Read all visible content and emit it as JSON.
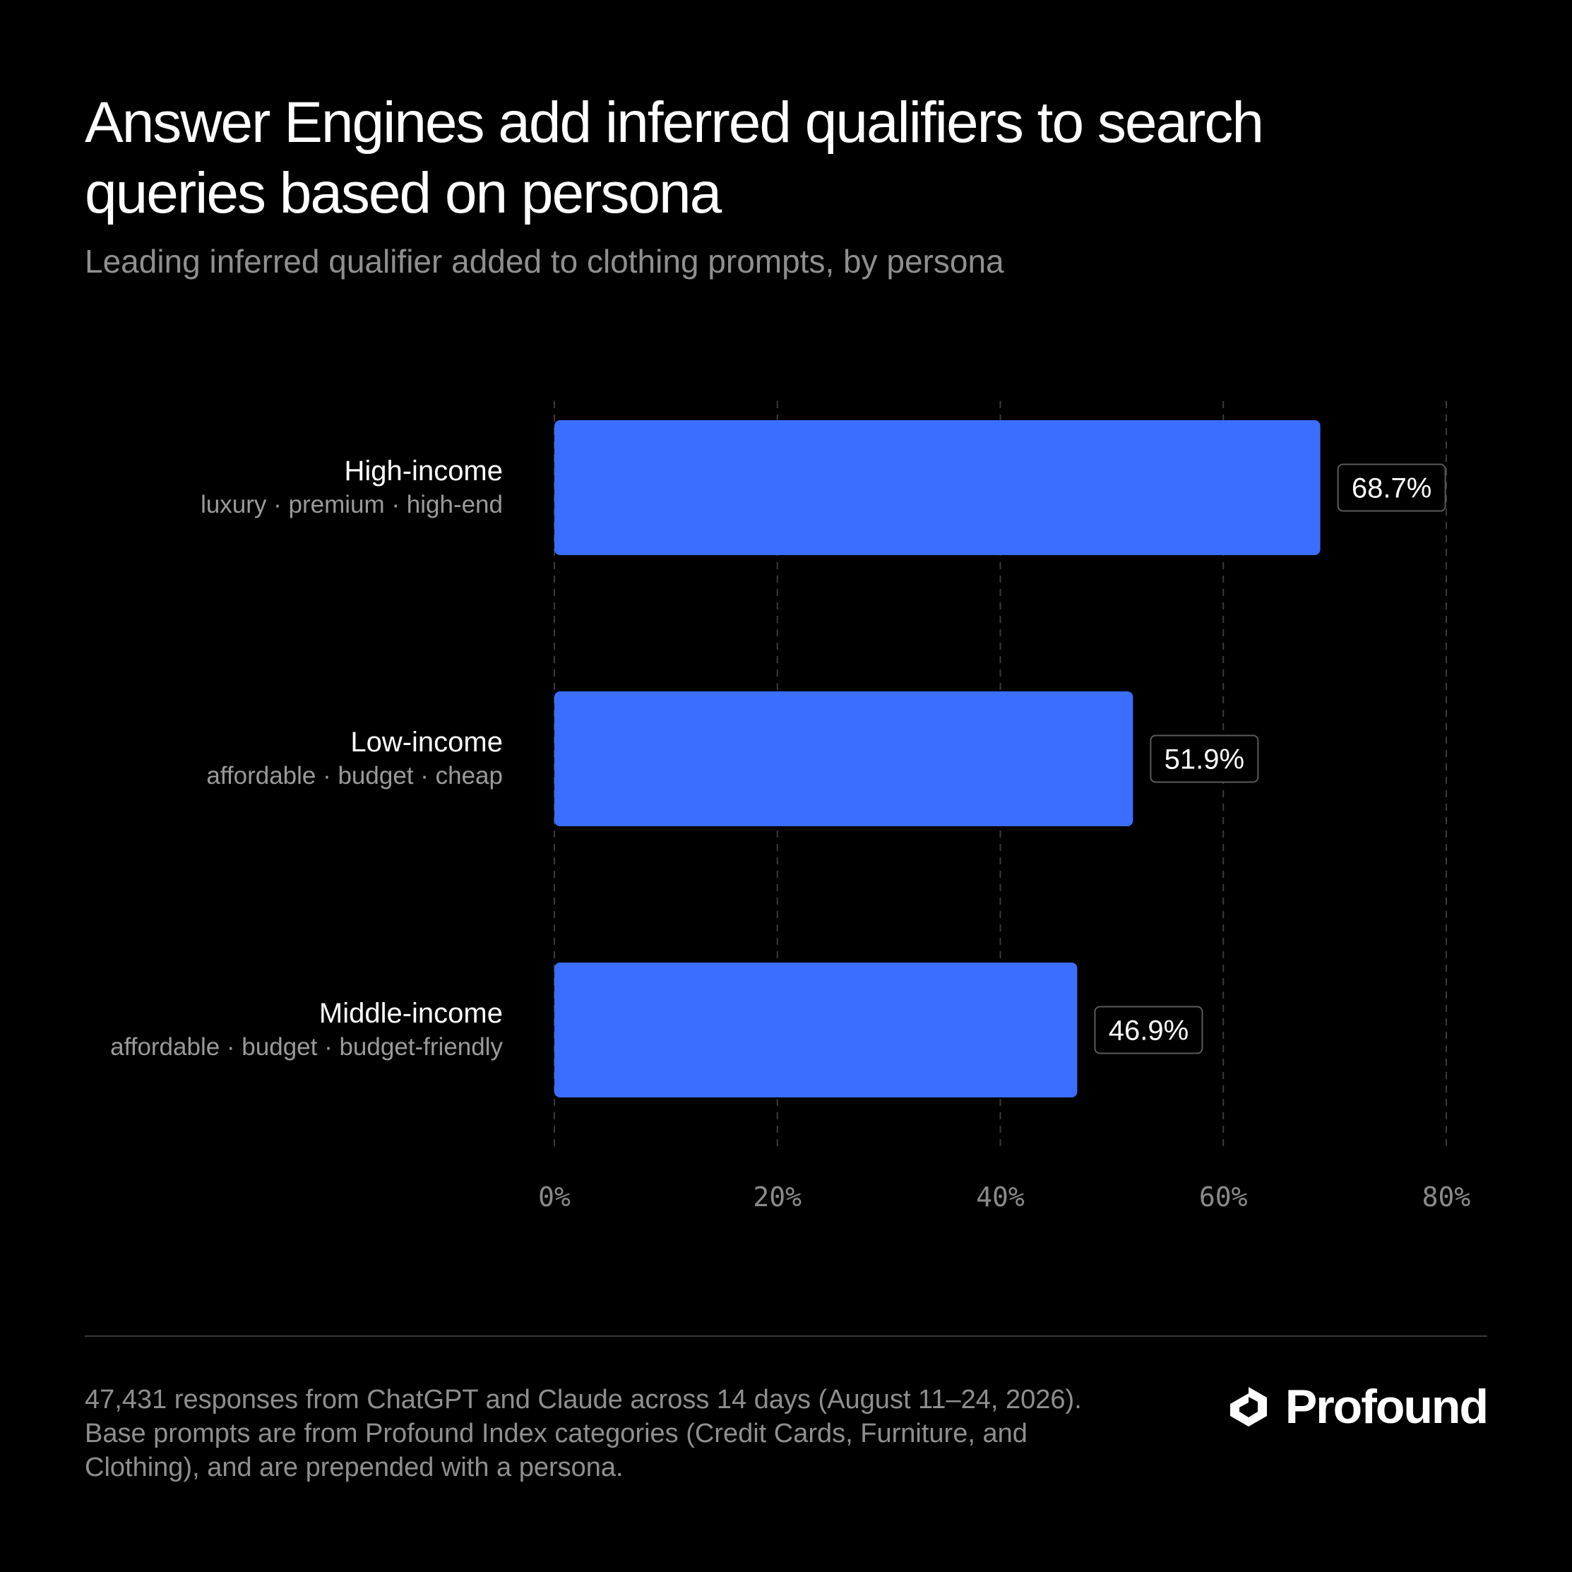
{
  "header": {
    "title": "Answer Engines add inferred qualifiers to search queries based on persona",
    "subtitle": "Leading inferred qualifier added to clothing prompts, by persona"
  },
  "chart_data": {
    "type": "bar",
    "orientation": "horizontal",
    "categories": [
      "High-income",
      "Low-income",
      "Middle-income"
    ],
    "category_qualifiers": [
      "luxury · premium · high-end",
      "affordable · budget · cheap",
      "affordable · budget · budget-friendly"
    ],
    "values": [
      68.7,
      51.9,
      46.9
    ],
    "value_labels": [
      "68.7%",
      "51.9%",
      "46.9%"
    ],
    "xlim": [
      0,
      80
    ],
    "xticks": [
      0,
      20,
      40,
      60,
      80
    ],
    "xtick_labels": [
      "0%",
      "20%",
      "40%",
      "60%",
      "80%"
    ],
    "grid": "vertical dashed",
    "bar_color": "#3b6eff"
  },
  "footer": {
    "note": "47,431 responses from ChatGPT and Claude across 14 days (August 11–24, 2026). Base prompts are from Profound Index categories (Credit Cards, Furniture, and Clothing), and are prepended with a persona.",
    "brand": "Profound",
    "brand_icon": "profound-logo-icon"
  }
}
